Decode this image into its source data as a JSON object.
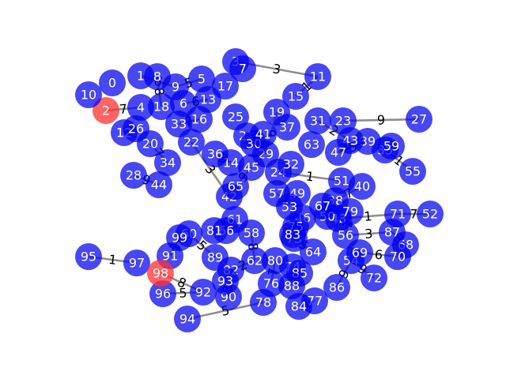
{
  "graph": {
    "node_color": "#0000ee",
    "highlight_color": "#ff3030",
    "edge_color": "#808080",
    "highlighted": [
      "2",
      "98"
    ],
    "nodes": [
      "0",
      "1",
      "2",
      "3",
      "4",
      "5",
      "6",
      "7",
      "8",
      "9",
      "10",
      "11",
      "12",
      "13",
      "14",
      "15",
      "16",
      "17",
      "18",
      "19",
      "20",
      "21",
      "22",
      "23",
      "24",
      "25",
      "26",
      "27",
      "28",
      "29",
      "30",
      "31",
      "32",
      "33",
      "34",
      "35",
      "36",
      "37",
      "38",
      "39",
      "40",
      "41",
      "42",
      "43",
      "44",
      "45",
      "46",
      "47",
      "48",
      "49",
      "50",
      "51",
      "52",
      "53",
      "54",
      "55",
      "56",
      "57",
      "58",
      "59",
      "60",
      "61",
      "62",
      "63",
      "64",
      "65",
      "66",
      "67",
      "68",
      "69",
      "70",
      "71",
      "72",
      "73",
      "74",
      "75",
      "76",
      "77",
      "78",
      "79",
      "80",
      "81",
      "82",
      "83",
      "84",
      "85",
      "86",
      "87",
      "88",
      "89",
      "90",
      "91",
      "92",
      "93",
      "94",
      "95",
      "96",
      "97",
      "98",
      "99"
    ],
    "edges": [
      {
        "source": "3",
        "target": "11",
        "weight": "3"
      },
      {
        "source": "23",
        "target": "27",
        "weight": "9"
      },
      {
        "source": "95",
        "target": "97",
        "weight": "1"
      },
      {
        "source": "78",
        "target": "94",
        "weight": "5"
      },
      {
        "source": "71",
        "target": "52",
        "weight": "7"
      },
      {
        "source": "2",
        "target": "4",
        "weight": "7"
      },
      {
        "source": "11",
        "target": "15",
        "weight": "1"
      },
      {
        "source": "98",
        "target": "92",
        "weight": "8"
      },
      {
        "source": "31",
        "target": "43",
        "weight": "2"
      },
      {
        "source": "54",
        "target": "72",
        "weight": "9"
      },
      {
        "source": "69",
        "target": "70",
        "weight": "6"
      },
      {
        "source": "89",
        "target": "60",
        "weight": "5"
      },
      {
        "source": "24",
        "target": "51",
        "weight": "1"
      },
      {
        "source": "87",
        "target": "56",
        "weight": "3"
      },
      {
        "source": "62",
        "target": "58",
        "weight": "8"
      },
      {
        "source": "38",
        "target": "40",
        "weight": "7"
      },
      {
        "source": "48",
        "target": "71",
        "weight": "1"
      },
      {
        "source": "29",
        "target": "19",
        "weight": "6"
      },
      {
        "source": "9",
        "target": "5",
        "weight": "5"
      },
      {
        "source": "28",
        "target": "44",
        "weight": "9"
      },
      {
        "source": "86",
        "target": "54",
        "weight": "9"
      },
      {
        "source": "73",
        "target": "64",
        "weight": "5"
      },
      {
        "source": "35",
        "target": "59",
        "weight": "9"
      },
      {
        "source": "42",
        "target": "22",
        "weight": "3"
      },
      {
        "source": "33",
        "target": "16",
        "weight": "7"
      },
      {
        "source": "61",
        "target": "81",
        "weight": "7"
      },
      {
        "source": "68",
        "target": "87",
        "weight": "3"
      },
      {
        "source": "47",
        "target": "43",
        "weight": "1"
      },
      {
        "source": "99",
        "target": "91",
        "weight": "1"
      },
      {
        "source": "90",
        "target": "93",
        "weight": "8"
      },
      {
        "source": "80",
        "target": "76",
        "weight": "7"
      },
      {
        "source": "57",
        "target": "53",
        "weight": "7"
      },
      {
        "source": "13",
        "target": "6",
        "weight": "6"
      },
      {
        "source": "20",
        "target": "34",
        "weight": "7"
      },
      {
        "source": "65",
        "target": "45",
        "weight": "9"
      },
      {
        "source": "36",
        "target": "14",
        "weight": "3"
      },
      {
        "source": "82",
        "target": "62",
        "weight": "2"
      },
      {
        "source": "39",
        "target": "47",
        "weight": "5"
      },
      {
        "source": "84",
        "target": "77",
        "weight": "1"
      },
      {
        "source": "96",
        "target": "92",
        "weight": "5"
      },
      {
        "source": "8",
        "target": "18",
        "weight": "8"
      },
      {
        "source": "1",
        "target": "9",
        "weight": "6"
      },
      {
        "source": "26",
        "target": "12",
        "weight": "3"
      },
      {
        "source": "67",
        "target": "50",
        "weight": "6"
      },
      {
        "source": "85",
        "target": "74",
        "weight": "4"
      },
      {
        "source": "55",
        "target": "35",
        "weight": "1"
      },
      {
        "source": "66",
        "target": "61",
        "weight": "2"
      },
      {
        "source": "41",
        "target": "21",
        "weight": "1"
      },
      {
        "source": "79",
        "target": "56",
        "weight": "2"
      }
    ]
  }
}
